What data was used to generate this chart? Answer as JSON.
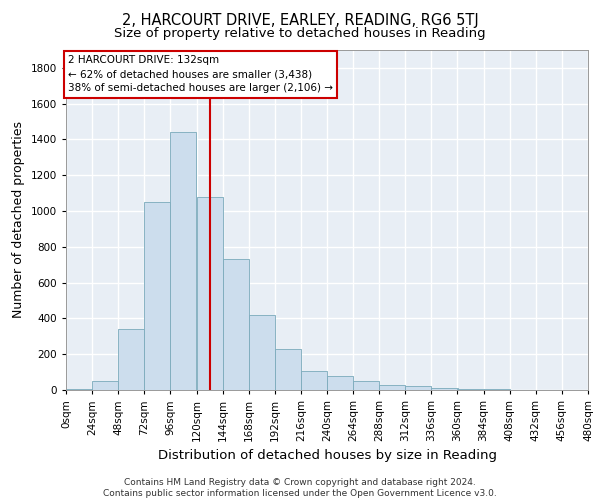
{
  "title_line1": "2, HARCOURT DRIVE, EARLEY, READING, RG6 5TJ",
  "title_line2": "Size of property relative to detached houses in Reading",
  "xlabel": "Distribution of detached houses by size in Reading",
  "ylabel": "Number of detached properties",
  "footer_line1": "Contains HM Land Registry data © Crown copyright and database right 2024.",
  "footer_line2": "Contains public sector information licensed under the Open Government Licence v3.0.",
  "bin_edges": [
    0,
    24,
    48,
    72,
    96,
    120,
    144,
    168,
    192,
    216,
    240,
    264,
    288,
    312,
    336,
    360,
    384,
    408,
    432,
    456,
    480
  ],
  "bin_labels": [
    "0sqm",
    "24sqm",
    "48sqm",
    "72sqm",
    "96sqm",
    "120sqm",
    "144sqm",
    "168sqm",
    "192sqm",
    "216sqm",
    "240sqm",
    "264sqm",
    "288sqm",
    "312sqm",
    "336sqm",
    "360sqm",
    "384sqm",
    "408sqm",
    "432sqm",
    "456sqm",
    "480sqm"
  ],
  "bar_values": [
    5,
    50,
    340,
    1050,
    1440,
    1080,
    730,
    420,
    230,
    105,
    80,
    50,
    30,
    20,
    10,
    5,
    5,
    0,
    0,
    0
  ],
  "bar_color": "#ccdded",
  "bar_edge_color": "#7aaabb",
  "property_size": 132,
  "vline_color": "#cc0000",
  "annotation_text": "2 HARCOURT DRIVE: 132sqm\n← 62% of detached houses are smaller (3,438)\n38% of semi-detached houses are larger (2,106) →",
  "annotation_box_facecolor": "#ffffff",
  "annotation_box_edgecolor": "#cc0000",
  "ylim": [
    0,
    1900
  ],
  "yticks": [
    0,
    200,
    400,
    600,
    800,
    1000,
    1200,
    1400,
    1600,
    1800
  ],
  "plot_bg_color": "#e8eef5",
  "grid_color": "#ffffff",
  "title_fontsize": 10.5,
  "subtitle_fontsize": 9.5,
  "ylabel_fontsize": 9,
  "xlabel_fontsize": 9.5,
  "tick_fontsize": 7.5,
  "annotation_fontsize": 7.5,
  "footer_fontsize": 6.5
}
